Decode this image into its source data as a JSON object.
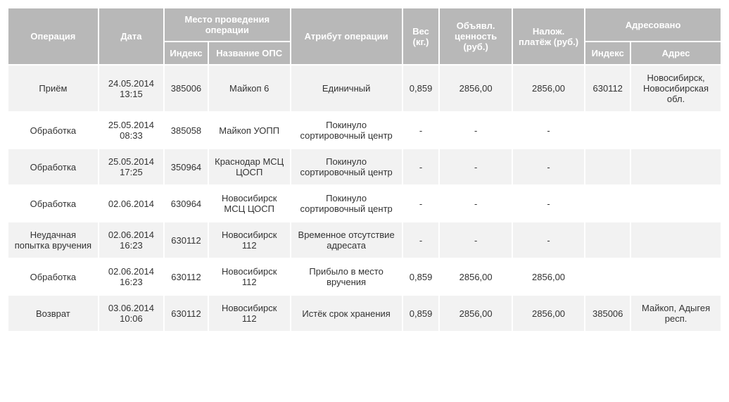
{
  "type": "table",
  "header_bg": "#b8b8b8",
  "header_color": "#ffffff",
  "row_odd_bg": "#f2f2f2",
  "row_even_bg": "#ffffff",
  "text_color": "#333333",
  "font_size": 13,
  "columns": {
    "operation": "Операция",
    "date": "Дата",
    "location_group": "Место проведения операции",
    "index": "Индекс",
    "ops_name": "Название ОПС",
    "attribute": "Атрибут операции",
    "weight": "Вес (кг.)",
    "declared_value": "Объявл. ценность (руб.)",
    "cod": "Налож. платёж (руб.)",
    "addressed_group": "Адресовано",
    "addr_index": "Индекс",
    "addr": "Адрес"
  },
  "rows": [
    {
      "operation": "Приём",
      "date": "24.05.2014 13:15",
      "index": "385006",
      "ops_name": "Майкоп 6",
      "attribute": "Единичный",
      "weight": "0,859",
      "declared_value": "2856,00",
      "cod": "2856,00",
      "addr_index": "630112",
      "addr": "Новосибирск, Новосибирская обл."
    },
    {
      "operation": "Обработка",
      "date": "25.05.2014 08:33",
      "index": "385058",
      "ops_name": "Майкоп УОПП",
      "attribute": "Покинуло сортировочный центр",
      "weight": "-",
      "declared_value": "-",
      "cod": "-",
      "addr_index": "",
      "addr": ""
    },
    {
      "operation": "Обработка",
      "date": "25.05.2014 17:25",
      "index": "350964",
      "ops_name": "Краснодар МСЦ ЦОСП",
      "attribute": "Покинуло сортировочный центр",
      "weight": "-",
      "declared_value": "-",
      "cod": "-",
      "addr_index": "",
      "addr": ""
    },
    {
      "operation": "Обработка",
      "date": "02.06.2014",
      "index": "630964",
      "ops_name": "Новосибирск МСЦ ЦОСП",
      "attribute": "Покинуло сортировочный центр",
      "weight": "-",
      "declared_value": "-",
      "cod": "-",
      "addr_index": "",
      "addr": ""
    },
    {
      "operation": "Неудачная попытка вручения",
      "date": "02.06.2014 16:23",
      "index": "630112",
      "ops_name": "Новосибирск 112",
      "attribute": "Временное отсутствие адресата",
      "weight": "-",
      "declared_value": "-",
      "cod": "-",
      "addr_index": "",
      "addr": ""
    },
    {
      "operation": "Обработка",
      "date": "02.06.2014 16:23",
      "index": "630112",
      "ops_name": "Новосибирск 112",
      "attribute": "Прибыло в место вручения",
      "weight": "0,859",
      "declared_value": "2856,00",
      "cod": "2856,00",
      "addr_index": "",
      "addr": ""
    },
    {
      "operation": "Возврат",
      "date": "03.06.2014 10:06",
      "index": "630112",
      "ops_name": "Новосибирск 112",
      "attribute": "Истёк срок хранения",
      "weight": "0,859",
      "declared_value": "2856,00",
      "cod": "2856,00",
      "addr_index": "385006",
      "addr": "Майкоп, Адыгея респ."
    }
  ]
}
